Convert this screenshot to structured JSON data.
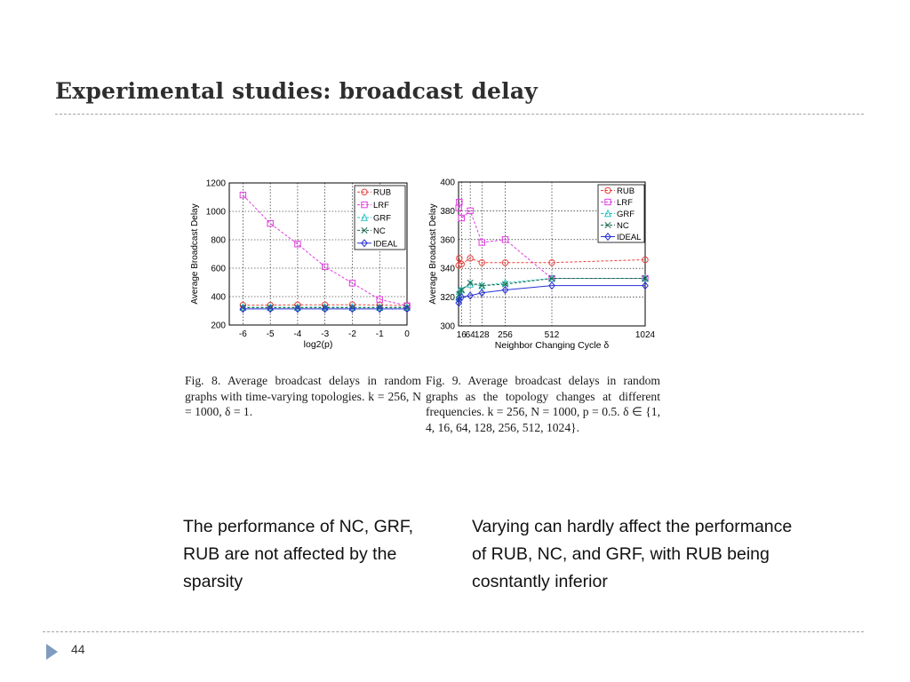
{
  "slide": {
    "title": "Experimental studies: broadcast delay",
    "page_number": "44"
  },
  "captions": {
    "fig8": "Fig. 8.   Average broadcast delays in random graphs with time-varying topologies. k = 256, N = 1000, δ = 1.",
    "fig9": "Fig. 9.   Average broadcast delays in random graphs as the topology changes at different frequencies. k = 256, N = 1000, p = 0.5. δ ∈ {1, 4, 16, 64, 128, 256, 512, 1024}."
  },
  "notes": {
    "left": "The performance of NC, GRF, RUB are not affected by the sparsity",
    "right": "Varying  can hardly affect the performance of RUB, NC, and GRF, with RUB being cosntantly inferior"
  },
  "colors": {
    "RUB": "#e8413c",
    "LRF": "#e03ce0",
    "GRF": "#27c3c3",
    "NC": "#1a6a4a",
    "IDEAL": "#2832d6"
  },
  "chart_data": [
    {
      "type": "line",
      "xlabel": "log2(p)",
      "ylabel": "Average Broadcast Delay",
      "x": [
        -6,
        -5,
        -4,
        -3,
        -2,
        -1,
        0
      ],
      "xlim": [
        -6.5,
        0
      ],
      "ylim": [
        200,
        1200
      ],
      "xticks": [
        "-6",
        "-5",
        "-4",
        "-3",
        "-2",
        "-1",
        "0"
      ],
      "yticks": [
        "200",
        "400",
        "600",
        "800",
        "1000",
        "1200"
      ],
      "grid": true,
      "legend_position": "top-right",
      "series": [
        {
          "name": "RUB",
          "marker": "circle",
          "values": [
            340,
            340,
            342,
            342,
            343,
            341,
            336
          ]
        },
        {
          "name": "LRF",
          "marker": "square",
          "values": [
            1115,
            915,
            770,
            610,
            495,
            380,
            336
          ]
        },
        {
          "name": "GRF",
          "marker": "triangle",
          "values": [
            325,
            325,
            325,
            326,
            325,
            325,
            325
          ]
        },
        {
          "name": "NC",
          "marker": "x",
          "values": [
            322,
            322,
            322,
            322,
            322,
            322,
            322
          ]
        },
        {
          "name": "IDEAL",
          "marker": "diamond",
          "values": [
            313,
            313,
            313,
            313,
            313,
            313,
            313
          ]
        }
      ]
    },
    {
      "type": "line",
      "xlabel": "Neighbor Changing Cycle δ",
      "ylabel": "Average Broadcast Delay",
      "x": [
        1,
        4,
        16,
        64,
        128,
        256,
        512,
        1024
      ],
      "xlim": [
        0,
        1024
      ],
      "ylim": [
        300,
        400
      ],
      "xticks": [
        "16",
        "64",
        "128",
        "256",
        "512",
        "1024"
      ],
      "xtick_values": [
        16,
        64,
        128,
        256,
        512,
        1024
      ],
      "yticks": [
        "300",
        "320",
        "340",
        "360",
        "380",
        "400"
      ],
      "grid": true,
      "legend_position": "top-right",
      "series": [
        {
          "name": "RUB",
          "marker": "circle",
          "values": [
            342,
            347,
            343,
            347,
            344,
            344,
            344,
            346
          ]
        },
        {
          "name": "LRF",
          "marker": "square",
          "values": [
            382,
            386,
            375,
            380,
            358,
            360,
            333,
            333
          ]
        },
        {
          "name": "GRF",
          "marker": "triangle",
          "values": [
            320,
            324,
            325,
            329,
            328,
            330,
            333,
            333
          ]
        },
        {
          "name": "NC",
          "marker": "x",
          "values": [
            318,
            322,
            325,
            330,
            328,
            329,
            333,
            333
          ]
        },
        {
          "name": "IDEAL",
          "marker": "diamond",
          "values": [
            316,
            318,
            320,
            321,
            323,
            325,
            328,
            328
          ]
        }
      ]
    }
  ]
}
